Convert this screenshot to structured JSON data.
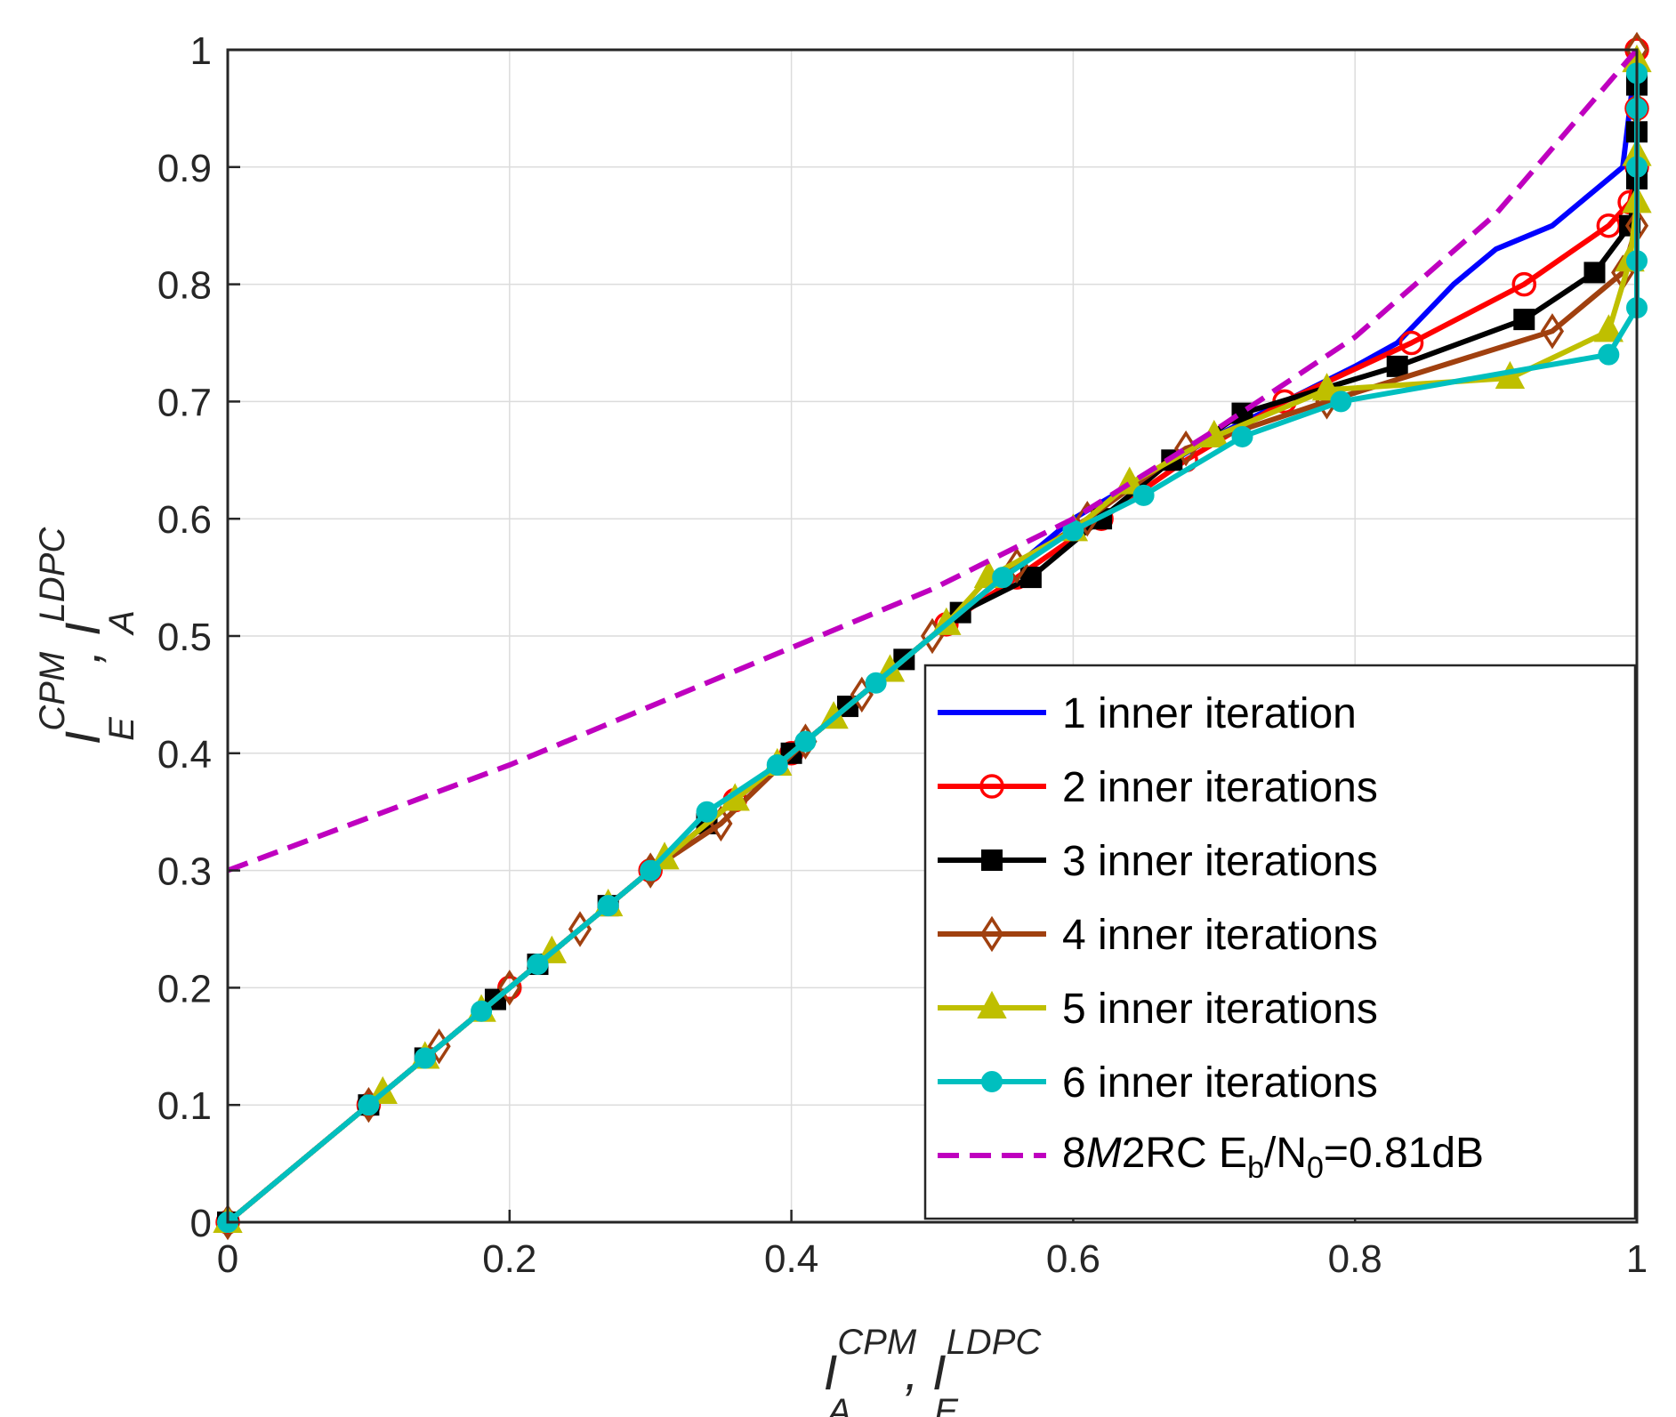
{
  "chart_data": {
    "type": "line",
    "title": "",
    "xlabel": {
      "base1": "I",
      "sub1": "A",
      "sup1": "CPM",
      "sep": ", ",
      "base2": "I",
      "sub2": "E",
      "sup2": "LDPC"
    },
    "ylabel": {
      "base1": "I",
      "sub1": "E",
      "sup1": "CPM",
      "sep": ", ",
      "base2": "I",
      "sub2": "A",
      "sup2": "LDPC"
    },
    "xlim": [
      0,
      1
    ],
    "ylim": [
      0,
      1
    ],
    "grid": true,
    "xticks": [
      0,
      0.2,
      0.4,
      0.6,
      0.8,
      1
    ],
    "xtick_labels": [
      "0",
      "0.2",
      "0.4",
      "0.6",
      "0.8",
      "1"
    ],
    "yticks": [
      0,
      0.1,
      0.2,
      0.3,
      0.4,
      0.5,
      0.6,
      0.7,
      0.8,
      0.9,
      1
    ],
    "ytick_labels": [
      "0",
      "0.1",
      "0.2",
      "0.3",
      "0.4",
      "0.5",
      "0.6",
      "0.7",
      "0.8",
      "0.9",
      "1"
    ],
    "legend_position": "bottom-right",
    "series": [
      {
        "name": "1 inner iteration",
        "color": "#0000ff",
        "marker": "none",
        "dash": "solid",
        "x": [
          0,
          0.1,
          0.2,
          0.3,
          0.4,
          0.5,
          0.6,
          0.7,
          0.75,
          0.8,
          0.83,
          0.87,
          0.9,
          0.94,
          0.97,
          0.99,
          1.0
        ],
        "y": [
          0,
          0.1,
          0.2,
          0.3,
          0.4,
          0.5,
          0.6,
          0.67,
          0.7,
          0.73,
          0.75,
          0.8,
          0.83,
          0.85,
          0.88,
          0.9,
          1.0
        ]
      },
      {
        "name": "2 inner iterations",
        "color": "#ff0000",
        "marker": "circle",
        "dash": "solid",
        "x": [
          0,
          0.1,
          0.2,
          0.3,
          0.36,
          0.4,
          0.51,
          0.56,
          0.62,
          0.68,
          0.75,
          0.84,
          0.92,
          0.98,
          0.995,
          1.0,
          1.0,
          1.0
        ],
        "y": [
          0,
          0.1,
          0.2,
          0.3,
          0.36,
          0.4,
          0.51,
          0.55,
          0.6,
          0.65,
          0.7,
          0.75,
          0.8,
          0.85,
          0.87,
          0.9,
          0.95,
          1.0
        ]
      },
      {
        "name": "3 inner iterations",
        "color": "#000000",
        "marker": "square",
        "dash": "solid",
        "x": [
          0,
          0.1,
          0.14,
          0.19,
          0.22,
          0.27,
          0.34,
          0.4,
          0.44,
          0.48,
          0.52,
          0.57,
          0.62,
          0.67,
          0.72,
          0.83,
          0.92,
          0.97,
          0.995,
          1.0,
          1.0,
          1.0
        ],
        "y": [
          0,
          0.1,
          0.14,
          0.19,
          0.22,
          0.27,
          0.34,
          0.4,
          0.44,
          0.48,
          0.52,
          0.55,
          0.6,
          0.65,
          0.69,
          0.73,
          0.77,
          0.81,
          0.85,
          0.89,
          0.93,
          0.97
        ]
      },
      {
        "name": "4 inner iterations",
        "color": "#a0400f",
        "marker": "diamond",
        "dash": "solid",
        "x": [
          0,
          0.1,
          0.15,
          0.2,
          0.25,
          0.3,
          0.35,
          0.41,
          0.45,
          0.5,
          0.56,
          0.61,
          0.68,
          0.78,
          0.94,
          0.99,
          1.0,
          1.0,
          1.0
        ],
        "y": [
          0,
          0.1,
          0.15,
          0.2,
          0.25,
          0.3,
          0.34,
          0.41,
          0.45,
          0.5,
          0.56,
          0.6,
          0.66,
          0.7,
          0.76,
          0.81,
          0.85,
          0.95,
          1.0
        ]
      },
      {
        "name": "5 inner iterations",
        "color": "#bfbf00",
        "marker": "triangle",
        "dash": "solid",
        "x": [
          0,
          0.11,
          0.14,
          0.18,
          0.23,
          0.27,
          0.31,
          0.36,
          0.39,
          0.43,
          0.47,
          0.51,
          0.54,
          0.6,
          0.64,
          0.7,
          0.78,
          0.91,
          0.98,
          0.995,
          1.0,
          1.0,
          1.0
        ],
        "y": [
          0,
          0.11,
          0.14,
          0.18,
          0.23,
          0.27,
          0.31,
          0.36,
          0.39,
          0.43,
          0.47,
          0.51,
          0.55,
          0.59,
          0.63,
          0.67,
          0.71,
          0.72,
          0.76,
          0.82,
          0.87,
          0.91,
          0.99
        ]
      },
      {
        "name": "6 inner iterations",
        "color": "#00bfbf",
        "marker": "dot",
        "dash": "solid",
        "x": [
          0,
          0.1,
          0.14,
          0.18,
          0.22,
          0.27,
          0.3,
          0.34,
          0.39,
          0.41,
          0.46,
          0.55,
          0.6,
          0.65,
          0.72,
          0.79,
          0.98,
          1.0,
          1.0,
          1.0,
          1.0,
          1.0
        ],
        "y": [
          0,
          0.1,
          0.14,
          0.18,
          0.22,
          0.27,
          0.3,
          0.35,
          0.39,
          0.41,
          0.46,
          0.55,
          0.59,
          0.62,
          0.67,
          0.7,
          0.74,
          0.78,
          0.82,
          0.9,
          0.95,
          0.98
        ]
      },
      {
        "name": "8M2RC Eb/N0=0.81dB",
        "color": "#bf00bf",
        "marker": "none",
        "dash": "dashed",
        "x": [
          0,
          0.1,
          0.2,
          0.3,
          0.4,
          0.5,
          0.6,
          0.7,
          0.8,
          0.9,
          1.0
        ],
        "y": [
          0.3,
          0.345,
          0.39,
          0.44,
          0.49,
          0.54,
          0.6,
          0.675,
          0.755,
          0.86,
          1.0
        ]
      }
    ],
    "legend_entries": [
      {
        "label": "1 inner iteration"
      },
      {
        "label": "2 inner iterations"
      },
      {
        "label": "3 inner iterations"
      },
      {
        "label": "4 inner iterations"
      },
      {
        "label": "5 inner iterations"
      },
      {
        "label": "6 inner iterations"
      },
      {
        "label_parts": {
          "a": "8",
          "b": "M",
          "c": "2RC E",
          "d": "b",
          "e": "/N",
          "f": "0",
          "g": "=0.81dB"
        }
      }
    ]
  }
}
